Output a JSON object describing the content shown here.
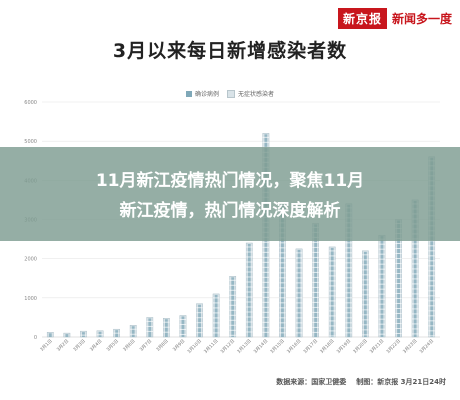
{
  "brand": {
    "logo": "新京报",
    "name": "新闻多一度"
  },
  "chart_data": {
    "type": "bar",
    "title": "3月以来每日新增感染者数",
    "legend": [
      {
        "name": "确诊病例",
        "color": "#7fa8b8"
      },
      {
        "name": "无症状感染者",
        "color": "#d9e3e8"
      }
    ],
    "legend_position": "top-center",
    "grid": true,
    "ylim": [
      0,
      6000
    ],
    "yticks": [
      "0",
      "1000",
      "2000",
      "3000",
      "4000",
      "5000",
      "6000"
    ],
    "xlabel": "",
    "ylabel": "",
    "categories": [
      "3月1日",
      "3月2日",
      "3月3日",
      "3月4日",
      "3月5日",
      "3月6日",
      "3月7日",
      "3月8日",
      "3月9日",
      "3月10日",
      "3月11日",
      "3月12日",
      "3月13日",
      "3月14日",
      "3月15日",
      "3月16日",
      "3月17日",
      "3月18日",
      "3月19日",
      "3月20日",
      "3月21日",
      "3月22日",
      "3月23日",
      "3月24日"
    ],
    "values": [
      120,
      100,
      150,
      160,
      200,
      300,
      500,
      480,
      550,
      850,
      1100,
      1550,
      2400,
      5200,
      3400,
      2250,
      2900,
      2300,
      3400,
      2200,
      2600,
      3000,
      3500,
      4600
    ]
  },
  "overlay": {
    "line1": "11月新江疫情热门情况，聚焦11月",
    "line2": "新江疫情，热门情况深度解析"
  },
  "footer": {
    "source": "数据来源：国家卫健委",
    "date": "制图：新京报 3月21日24时"
  }
}
